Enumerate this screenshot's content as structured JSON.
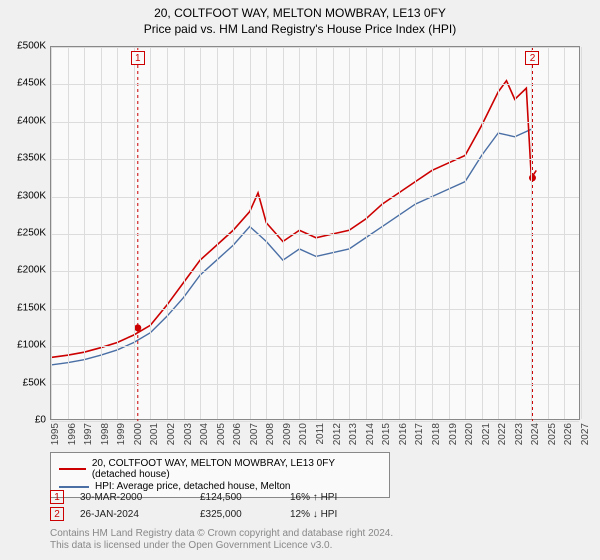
{
  "title": {
    "main": "20, COLTFOOT WAY, MELTON MOWBRAY, LE13 0FY",
    "sub": "Price paid vs. HM Land Registry's House Price Index (HPI)",
    "fontsize": 12,
    "color": "#000000"
  },
  "chart": {
    "type": "line",
    "background": "#fafafa",
    "border_color": "#888888",
    "grid_color": "#dcdcdc",
    "x": {
      "min": 1995,
      "max": 2027,
      "ticks": [
        1995,
        1996,
        1997,
        1998,
        1999,
        2000,
        2001,
        2002,
        2003,
        2004,
        2005,
        2006,
        2007,
        2008,
        2009,
        2010,
        2011,
        2012,
        2013,
        2014,
        2015,
        2016,
        2017,
        2018,
        2019,
        2020,
        2021,
        2022,
        2023,
        2024,
        2025,
        2026,
        2027
      ],
      "label_fontsize": 10
    },
    "y": {
      "min": 0,
      "max": 500000,
      "ticks": [
        0,
        50000,
        100000,
        150000,
        200000,
        250000,
        300000,
        350000,
        400000,
        450000,
        500000
      ],
      "tick_labels": [
        "£0",
        "£50K",
        "£100K",
        "£150K",
        "£200K",
        "£250K",
        "£300K",
        "£350K",
        "£400K",
        "£450K",
        "£500K"
      ],
      "label_fontsize": 10
    },
    "series": [
      {
        "name": "price_paid",
        "label": "20, COLTFOOT WAY, MELTON MOWBRAY, LE13 0FY (detached house)",
        "color": "#cc0000",
        "width": 1.6,
        "data": [
          [
            1995,
            85000
          ],
          [
            1996,
            88000
          ],
          [
            1997,
            92000
          ],
          [
            1998,
            98000
          ],
          [
            1999,
            105000
          ],
          [
            2000,
            115000
          ],
          [
            2001,
            128000
          ],
          [
            2002,
            155000
          ],
          [
            2003,
            185000
          ],
          [
            2004,
            215000
          ],
          [
            2005,
            235000
          ],
          [
            2006,
            255000
          ],
          [
            2007,
            280000
          ],
          [
            2007.5,
            305000
          ],
          [
            2008,
            265000
          ],
          [
            2009,
            240000
          ],
          [
            2010,
            255000
          ],
          [
            2011,
            245000
          ],
          [
            2012,
            250000
          ],
          [
            2013,
            255000
          ],
          [
            2014,
            270000
          ],
          [
            2015,
            290000
          ],
          [
            2016,
            305000
          ],
          [
            2017,
            320000
          ],
          [
            2018,
            335000
          ],
          [
            2019,
            345000
          ],
          [
            2020,
            355000
          ],
          [
            2021,
            395000
          ],
          [
            2022,
            440000
          ],
          [
            2022.5,
            455000
          ],
          [
            2023,
            430000
          ],
          [
            2023.7,
            445000
          ],
          [
            2024,
            325000
          ],
          [
            2024.3,
            335000
          ]
        ]
      },
      {
        "name": "hpi",
        "label": "HPI: Average price, detached house, Melton",
        "color": "#4a6fa5",
        "width": 1.4,
        "data": [
          [
            1995,
            75000
          ],
          [
            1996,
            78000
          ],
          [
            1997,
            82000
          ],
          [
            1998,
            88000
          ],
          [
            1999,
            95000
          ],
          [
            2000,
            105000
          ],
          [
            2001,
            118000
          ],
          [
            2002,
            140000
          ],
          [
            2003,
            165000
          ],
          [
            2004,
            195000
          ],
          [
            2005,
            215000
          ],
          [
            2006,
            235000
          ],
          [
            2007,
            260000
          ],
          [
            2008,
            240000
          ],
          [
            2009,
            215000
          ],
          [
            2010,
            230000
          ],
          [
            2011,
            220000
          ],
          [
            2012,
            225000
          ],
          [
            2013,
            230000
          ],
          [
            2014,
            245000
          ],
          [
            2015,
            260000
          ],
          [
            2016,
            275000
          ],
          [
            2017,
            290000
          ],
          [
            2018,
            300000
          ],
          [
            2019,
            310000
          ],
          [
            2020,
            320000
          ],
          [
            2021,
            355000
          ],
          [
            2022,
            385000
          ],
          [
            2023,
            380000
          ],
          [
            2024,
            390000
          ]
        ]
      }
    ],
    "markers": [
      {
        "idx": "1",
        "x": 2000.24,
        "color": "#cc0000",
        "point_y": 124500
      },
      {
        "idx": "2",
        "x": 2024.07,
        "color": "#cc0000",
        "point_y": 325000
      }
    ]
  },
  "legend": {
    "border_color": "#888888",
    "fontsize": 10
  },
  "transactions": [
    {
      "idx": "1",
      "date": "30-MAR-2000",
      "price": "£124,500",
      "diff": "16% ↑ HPI",
      "color": "#cc0000"
    },
    {
      "idx": "2",
      "date": "26-JAN-2024",
      "price": "£325,000",
      "diff": "12% ↓ HPI",
      "color": "#cc0000"
    }
  ],
  "footer": {
    "line1": "Contains HM Land Registry data © Crown copyright and database right 2024.",
    "line2": "This data is licensed under the Open Government Licence v3.0.",
    "color": "#888888"
  }
}
